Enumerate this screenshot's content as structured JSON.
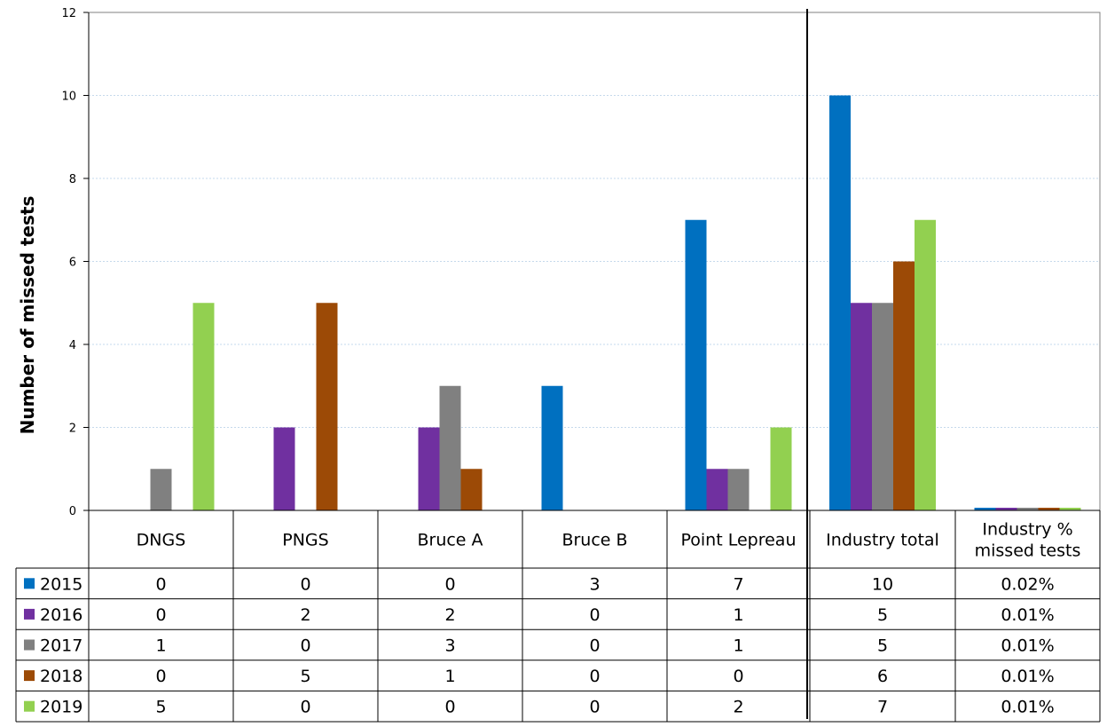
{
  "chart_data": {
    "type": "bar",
    "title": "",
    "xlabel": "",
    "ylabel": "Number of missed tests",
    "ylim": [
      0,
      12
    ],
    "yticks": [
      0,
      2,
      4,
      6,
      8,
      10,
      12
    ],
    "grid": true,
    "categories": [
      "DNGS",
      "PNGS",
      "Bruce A",
      "Bruce B",
      "Point Lepreau",
      "Industry total",
      "Industry %\nmissed tests"
    ],
    "category_lines": [
      [
        "DNGS"
      ],
      [
        "PNGS"
      ],
      [
        "Bruce A"
      ],
      [
        "Bruce B"
      ],
      [
        "Point Lepreau"
      ],
      [
        "Industry total"
      ],
      [
        "Industry %",
        "missed tests"
      ]
    ],
    "series": [
      {
        "name": "2015",
        "color": "#0070c0",
        "values": [
          0,
          0,
          0,
          3,
          7,
          10,
          0.02
        ],
        "table": [
          "0",
          "0",
          "0",
          "3",
          "7",
          "10",
          "0.02%"
        ]
      },
      {
        "name": "2016",
        "color": "#7030a0",
        "values": [
          0,
          2,
          2,
          0,
          1,
          5,
          0.01
        ],
        "table": [
          "0",
          "2",
          "2",
          "0",
          "1",
          "5",
          "0.01%"
        ]
      },
      {
        "name": "2017",
        "color": "#808080",
        "values": [
          1,
          0,
          3,
          0,
          1,
          5,
          0.01
        ],
        "table": [
          "1",
          "0",
          "3",
          "0",
          "1",
          "5",
          "0.01%"
        ]
      },
      {
        "name": "2018",
        "color": "#9c4a06",
        "values": [
          0,
          5,
          1,
          0,
          0,
          6,
          0.01
        ],
        "table": [
          "0",
          "5",
          "1",
          "0",
          "0",
          "6",
          "0.01%"
        ]
      },
      {
        "name": "2019",
        "color": "#92d050",
        "values": [
          5,
          0,
          0,
          0,
          2,
          7,
          0.01
        ],
        "table": [
          "5",
          "0",
          "0",
          "0",
          "2",
          "7",
          "0.01%"
        ]
      }
    ],
    "legend": "data table"
  }
}
